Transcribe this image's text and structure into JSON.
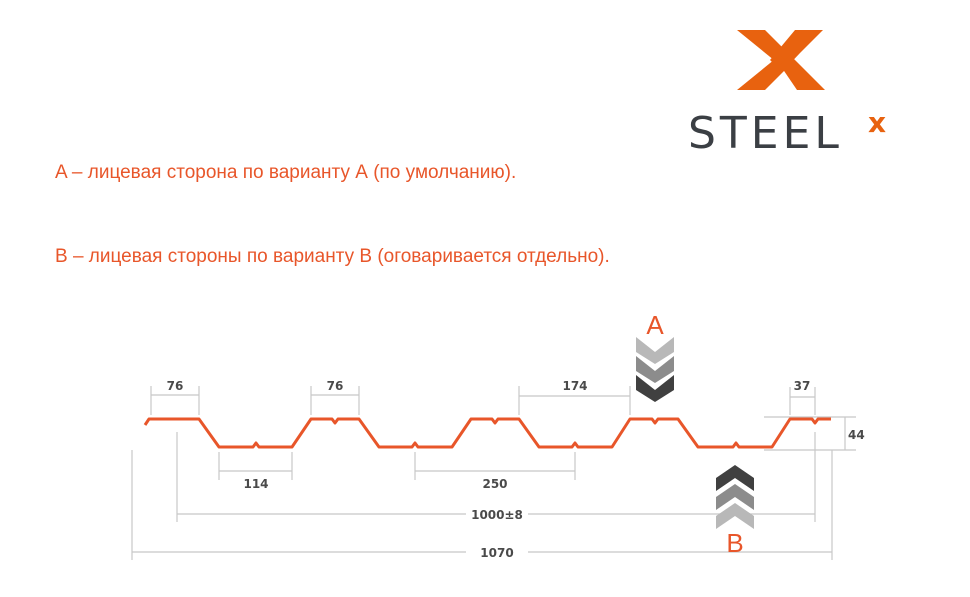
{
  "logo": {
    "text": "STEEL",
    "superscript": "x",
    "mark": "crossed-x-mark"
  },
  "descriptions": [
    "A – лицевая сторона по варианту А (по умолчанию).",
    "B – лицевая стороны по варианту B (оговаривается отдельно)."
  ],
  "diagram": {
    "profile_color": "#e8562a",
    "dimensions": {
      "top_width_1": "76",
      "top_width_2": "76",
      "bottom_width": "114",
      "pitch": "250",
      "top_gap": "174",
      "edge": "37",
      "height": "44",
      "working_width": "1000±8",
      "total_width": "1070"
    },
    "side_a": {
      "label": "A",
      "direction": "down"
    },
    "side_b": {
      "label": "B",
      "direction": "up"
    },
    "chevron_colors": [
      "#b8b8b8",
      "#8c8c8c",
      "#404040"
    ]
  }
}
